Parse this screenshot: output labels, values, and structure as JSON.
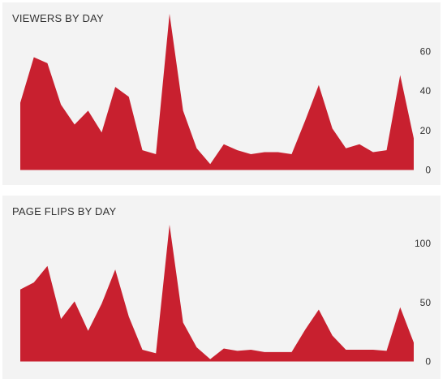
{
  "chart_data": [
    {
      "type": "area",
      "title": "VIEWERS BY DAY",
      "x": [
        1,
        2,
        3,
        4,
        5,
        6,
        7,
        8,
        9,
        10,
        11,
        12,
        13,
        14,
        15,
        16,
        17,
        18,
        19,
        20,
        21,
        22,
        23,
        24,
        25,
        26,
        27,
        28,
        29,
        30
      ],
      "series": [
        {
          "values": [
            34,
            57,
            54,
            33,
            23,
            30,
            19,
            42,
            37,
            10,
            8,
            79,
            30,
            11,
            3,
            13,
            10,
            8,
            9,
            9,
            8,
            25,
            43,
            21,
            11,
            13,
            9,
            10,
            48,
            16
          ]
        }
      ],
      "ylim": [
        0,
        72
      ],
      "yticks": [
        0,
        20,
        40,
        60
      ],
      "ytick_labels": [
        "0",
        "20",
        "40",
        "60"
      ],
      "color": "#c8202f",
      "grid": false
    },
    {
      "type": "area",
      "title": "PAGE FLIPS BY DAY",
      "x": [
        1,
        2,
        3,
        4,
        5,
        6,
        7,
        8,
        9,
        10,
        11,
        12,
        13,
        14,
        15,
        16,
        17,
        18,
        19,
        20,
        21,
        22,
        23,
        24,
        25,
        26,
        27,
        28,
        29,
        30
      ],
      "series": [
        {
          "values": [
            61,
            67,
            81,
            36,
            51,
            26,
            49,
            78,
            38,
            10,
            7,
            116,
            33,
            12,
            2,
            11,
            9,
            10,
            8,
            8,
            8,
            27,
            44,
            22,
            10,
            10,
            10,
            9,
            46,
            16
          ]
        }
      ],
      "ylim": [
        0,
        120
      ],
      "yticks": [
        0,
        50,
        100
      ],
      "ytick_labels": [
        "0",
        "50",
        "100"
      ],
      "color": "#c8202f",
      "grid": false
    }
  ]
}
